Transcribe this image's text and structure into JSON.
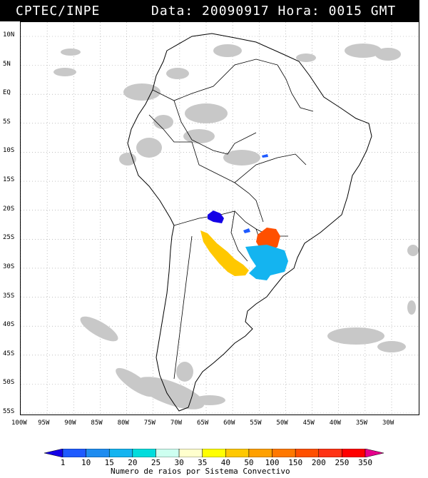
{
  "header": {
    "org": "CPTEC/INPE",
    "datetime": "Data: 20090917 Hora: 0015 GMT"
  },
  "lat_labels": [
    "10N",
    "5N",
    "EQ",
    "5S",
    "10S",
    "15S",
    "20S",
    "25S",
    "30S",
    "35S",
    "40S",
    "45S",
    "50S",
    "55S"
  ],
  "lon_labels": [
    "100W",
    "95W",
    "90W",
    "85W",
    "80W",
    "75W",
    "70W",
    "65W",
    "60W",
    "55W",
    "50W",
    "45W",
    "40W",
    "35W",
    "30W"
  ],
  "colorbar": {
    "title": "Numero de raios por Sistema Convectivo",
    "ticks": [
      "1",
      "10",
      "15",
      "20",
      "25",
      "30",
      "35",
      "40",
      "50",
      "100",
      "150",
      "200",
      "250",
      "350"
    ],
    "colors": [
      "#1400e6",
      "#1e5aff",
      "#1e8cf0",
      "#14b4f0",
      "#00dcdc",
      "#cdfff0",
      "#ffffcd",
      "#ffff00",
      "#ffc800",
      "#ffa000",
      "#ff7800",
      "#ff5000",
      "#ff3214",
      "#ff0000",
      "#e6008c"
    ]
  },
  "systems": [
    {
      "label": "small-blue",
      "color": "#1e5aff"
    },
    {
      "label": "dark-blue",
      "color": "#1400e6"
    },
    {
      "label": "orange-red",
      "color": "#ff5000"
    },
    {
      "label": "cyan",
      "color": "#14b4f0"
    },
    {
      "label": "yellow-orange",
      "color": "#ffc800"
    }
  ]
}
